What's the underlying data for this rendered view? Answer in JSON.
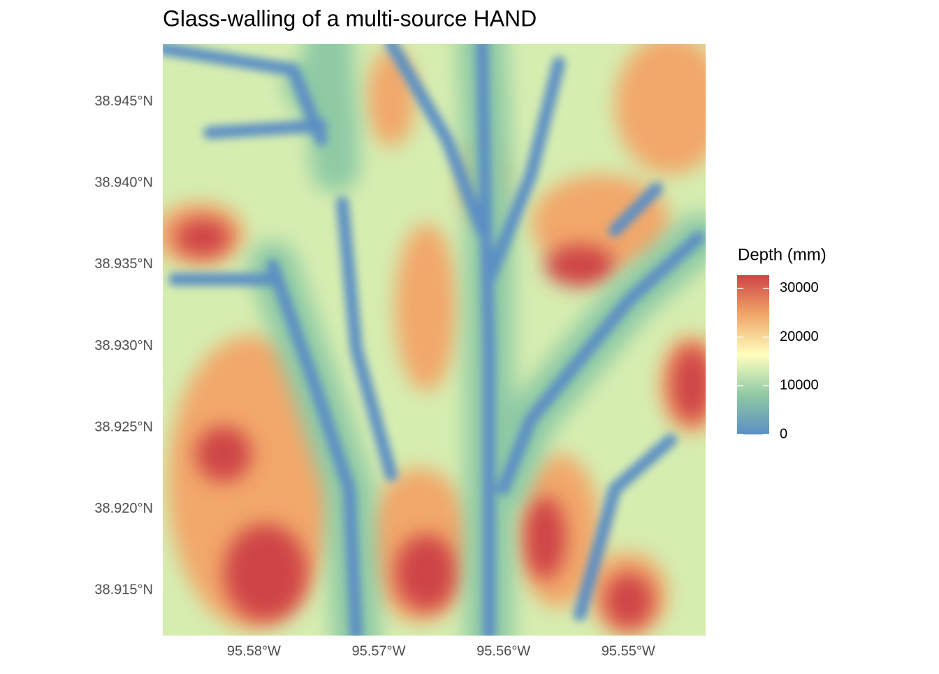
{
  "chart_data": {
    "type": "raster",
    "title": "Glass-walling of a multi-source HAND",
    "xlim": [
      -95.5873,
      -95.5438
    ],
    "ylim": [
      38.91221,
      38.94856
    ],
    "xticks": [
      {
        "value": -95.58,
        "label": "95.58°W"
      },
      {
        "value": -95.57,
        "label": "95.57°W"
      },
      {
        "value": -95.56,
        "label": "95.56°W"
      },
      {
        "value": -95.55,
        "label": "95.55°W"
      }
    ],
    "yticks": [
      {
        "value": 38.945,
        "label": "38.945°N"
      },
      {
        "value": 38.94,
        "label": "38.940°N"
      },
      {
        "value": 38.935,
        "label": "38.935°N"
      },
      {
        "value": 38.93,
        "label": "38.930°N"
      },
      {
        "value": 38.925,
        "label": "38.925°N"
      },
      {
        "value": 38.92,
        "label": "38.920°N"
      },
      {
        "value": 38.915,
        "label": "38.915°N"
      }
    ],
    "legend": {
      "title": "Depth (mm)",
      "limits": [
        0,
        32700
      ],
      "ticks": [
        0,
        10000,
        20000,
        30000
      ],
      "colors": [
        "#5b8fc4",
        "#8fcaa5",
        "#ffffbf",
        "#f0a868",
        "#cf4446"
      ]
    }
  }
}
